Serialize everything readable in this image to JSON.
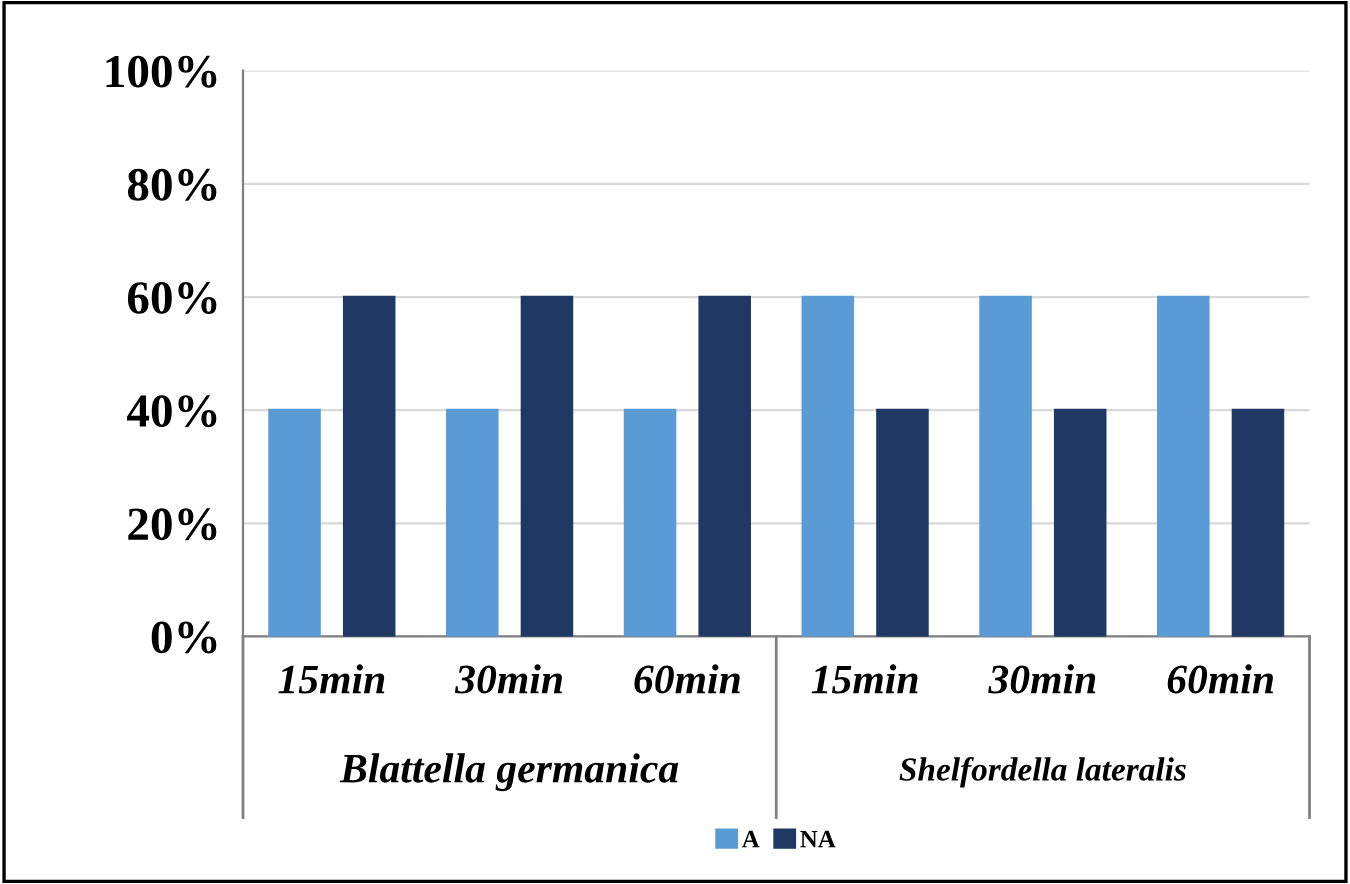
{
  "chart_data": {
    "type": "bar",
    "categories": [
      "15min",
      "30min",
      "60min",
      "15min",
      "30min",
      "60min"
    ],
    "series": [
      {
        "name": "A",
        "color": "#5b9bd5",
        "values": [
          40,
          40,
          40,
          60,
          60,
          60
        ]
      },
      {
        "name": "NA",
        "color": "#1f3864",
        "values": [
          60,
          60,
          60,
          40,
          40,
          40
        ]
      }
    ],
    "ylim": [
      0,
      100
    ],
    "yticks": [
      {
        "value": 0,
        "label": "0%"
      },
      {
        "value": 20,
        "label": "20%"
      },
      {
        "value": 40,
        "label": "40%"
      },
      {
        "value": 60,
        "label": "60%"
      },
      {
        "value": 80,
        "label": "80%"
      },
      {
        "value": 100,
        "label": "100%"
      }
    ],
    "grid": "y",
    "legend": "bottom",
    "annotations": [
      "Blattella germanica",
      "Shelfordella lateralis"
    ]
  }
}
